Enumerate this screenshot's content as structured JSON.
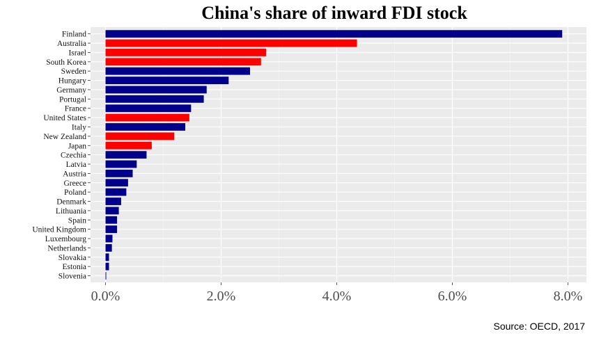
{
  "chart_data": {
    "type": "bar",
    "orientation": "horizontal",
    "title": "China's share of inward FDI stock",
    "source": "Source: OECD, 2017",
    "categories": [
      "Finland",
      "Australia",
      "Israel",
      "South Korea",
      "Sweden",
      "Hungary",
      "Germany",
      "Portugal",
      "France",
      "United States",
      "Italy",
      "New Zealand",
      "Japan",
      "Czechia",
      "Latvia",
      "Austria",
      "Greece",
      "Poland",
      "Denmark",
      "Lithuania",
      "Spain",
      "United Kingdom",
      "Luxembourg",
      "Netherlands",
      "Slovakia",
      "Estonia",
      "Slovenia"
    ],
    "values": [
      7.9,
      4.35,
      2.78,
      2.69,
      2.5,
      2.13,
      1.75,
      1.7,
      1.48,
      1.45,
      1.38,
      1.19,
      0.8,
      0.71,
      0.54,
      0.47,
      0.39,
      0.36,
      0.27,
      0.23,
      0.2,
      0.2,
      0.12,
      0.11,
      0.06,
      0.06,
      0.01
    ],
    "bar_colors": [
      "#00008b",
      "#ff0000",
      "#ff0000",
      "#ff0000",
      "#00008b",
      "#00008b",
      "#00008b",
      "#00008b",
      "#00008b",
      "#ff0000",
      "#00008b",
      "#ff0000",
      "#ff0000",
      "#00008b",
      "#00008b",
      "#00008b",
      "#00008b",
      "#00008b",
      "#00008b",
      "#00008b",
      "#00008b",
      "#00008b",
      "#00008b",
      "#00008b",
      "#00008b",
      "#00008b",
      "#00008b"
    ],
    "x_ticks": [
      "0.0%",
      "2.0%",
      "4.0%",
      "6.0%",
      "8.0%"
    ],
    "x_tick_values": [
      0,
      2,
      4,
      6,
      8
    ],
    "xlim": [
      -0.25,
      8.3
    ],
    "xlabel": "",
    "ylabel": "",
    "grid": true,
    "legend": "none",
    "panel_color": "#ebebeb"
  }
}
